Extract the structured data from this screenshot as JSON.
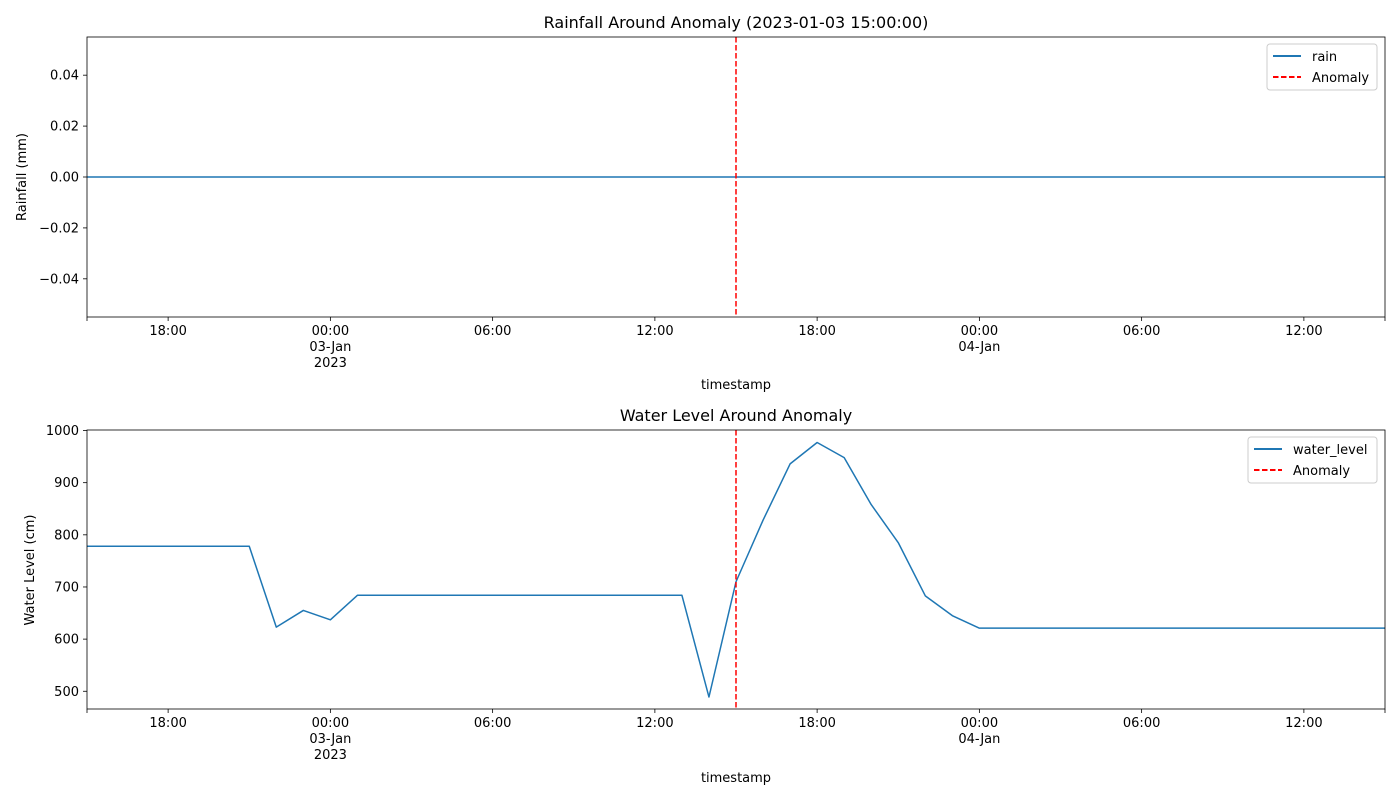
{
  "chart_data": [
    {
      "type": "line",
      "title": "Rainfall Around Anomaly (2023-01-03 15:00:00)",
      "xlabel": "timestamp",
      "ylabel": "Rainfall (mm)",
      "xlim": [
        "2023-01-02 15:00",
        "2023-01-04 15:00"
      ],
      "ylim": [
        -0.055,
        0.055
      ],
      "yticks": [
        0.04,
        0.02,
        0.0,
        -0.02,
        -0.04
      ],
      "ytick_labels": [
        "0.04",
        "0.02",
        "0.00",
        "−0.02",
        "−0.04"
      ],
      "xticks": [
        {
          "t": "2023-01-02 18:00",
          "label": [
            "18:00"
          ]
        },
        {
          "t": "2023-01-03 00:00",
          "label": [
            "00:00",
            "03-Jan",
            "2023"
          ]
        },
        {
          "t": "2023-01-03 06:00",
          "label": [
            "06:00"
          ]
        },
        {
          "t": "2023-01-03 12:00",
          "label": [
            "12:00"
          ]
        },
        {
          "t": "2023-01-03 18:00",
          "label": [
            "18:00"
          ]
        },
        {
          "t": "2023-01-04 00:00",
          "label": [
            "00:00",
            "04-Jan"
          ]
        },
        {
          "t": "2023-01-04 06:00",
          "label": [
            "06:00"
          ]
        },
        {
          "t": "2023-01-04 12:00",
          "label": [
            "12:00"
          ]
        }
      ],
      "series": [
        {
          "name": "rain",
          "color": "#1f77b4",
          "x": [
            "2023-01-02 15:00",
            "2023-01-04 15:00"
          ],
          "values": [
            0.0,
            0.0
          ]
        }
      ],
      "anomaly": {
        "name": "Anomaly",
        "t": "2023-01-03 15:00",
        "color": "#ff0000"
      },
      "legend": "top-right",
      "grid": false
    },
    {
      "type": "line",
      "title": "Water Level Around Anomaly",
      "xlabel": "timestamp",
      "ylabel": "Water Level (cm)",
      "xlim": [
        "2023-01-02 15:00",
        "2023-01-04 15:00"
      ],
      "ylim": [
        466,
        1001
      ],
      "yticks": [
        1000,
        900,
        800,
        700,
        600,
        500
      ],
      "ytick_labels": [
        "1000",
        "900",
        "800",
        "700",
        "600",
        "500"
      ],
      "xticks": [
        {
          "t": "2023-01-02 18:00",
          "label": [
            "18:00"
          ]
        },
        {
          "t": "2023-01-03 00:00",
          "label": [
            "00:00",
            "03-Jan",
            "2023"
          ]
        },
        {
          "t": "2023-01-03 06:00",
          "label": [
            "06:00"
          ]
        },
        {
          "t": "2023-01-03 12:00",
          "label": [
            "12:00"
          ]
        },
        {
          "t": "2023-01-03 18:00",
          "label": [
            "18:00"
          ]
        },
        {
          "t": "2023-01-04 00:00",
          "label": [
            "00:00",
            "04-Jan"
          ]
        },
        {
          "t": "2023-01-04 06:00",
          "label": [
            "06:00"
          ]
        },
        {
          "t": "2023-01-04 12:00",
          "label": [
            "12:00"
          ]
        }
      ],
      "series": [
        {
          "name": "water_level",
          "color": "#1f77b4",
          "x": [
            "2023-01-02 15:00",
            "2023-01-02 16:00",
            "2023-01-02 17:00",
            "2023-01-02 18:00",
            "2023-01-02 19:00",
            "2023-01-02 20:00",
            "2023-01-02 21:00",
            "2023-01-02 22:00",
            "2023-01-02 23:00",
            "2023-01-03 00:00",
            "2023-01-03 01:00",
            "2023-01-03 02:00",
            "2023-01-03 03:00",
            "2023-01-03 04:00",
            "2023-01-03 05:00",
            "2023-01-03 06:00",
            "2023-01-03 07:00",
            "2023-01-03 08:00",
            "2023-01-03 09:00",
            "2023-01-03 10:00",
            "2023-01-03 11:00",
            "2023-01-03 12:00",
            "2023-01-03 13:00",
            "2023-01-03 14:00",
            "2023-01-03 15:00",
            "2023-01-03 16:00",
            "2023-01-03 17:00",
            "2023-01-03 18:00",
            "2023-01-03 19:00",
            "2023-01-03 20:00",
            "2023-01-03 21:00",
            "2023-01-03 22:00",
            "2023-01-03 23:00",
            "2023-01-04 00:00",
            "2023-01-04 01:00",
            "2023-01-04 02:00",
            "2023-01-04 03:00",
            "2023-01-04 04:00",
            "2023-01-04 05:00",
            "2023-01-04 06:00",
            "2023-01-04 07:00",
            "2023-01-04 08:00",
            "2023-01-04 09:00",
            "2023-01-04 10:00",
            "2023-01-04 11:00",
            "2023-01-04 12:00",
            "2023-01-04 13:00",
            "2023-01-04 14:00",
            "2023-01-04 15:00"
          ],
          "values": [
            778,
            778,
            778,
            778,
            778,
            778,
            778,
            623,
            655,
            637,
            684,
            684,
            684,
            684,
            684,
            684,
            684,
            684,
            684,
            684,
            684,
            684,
            684,
            489,
            710,
            828,
            936,
            977,
            948,
            858,
            785,
            683,
            645,
            621,
            621,
            621,
            621,
            621,
            621,
            621,
            621,
            621,
            621,
            621,
            621,
            621,
            621,
            621,
            621
          ]
        }
      ],
      "anomaly": {
        "name": "Anomaly",
        "t": "2023-01-03 15:00",
        "color": "#ff0000"
      },
      "legend": "top-right",
      "grid": false
    }
  ]
}
